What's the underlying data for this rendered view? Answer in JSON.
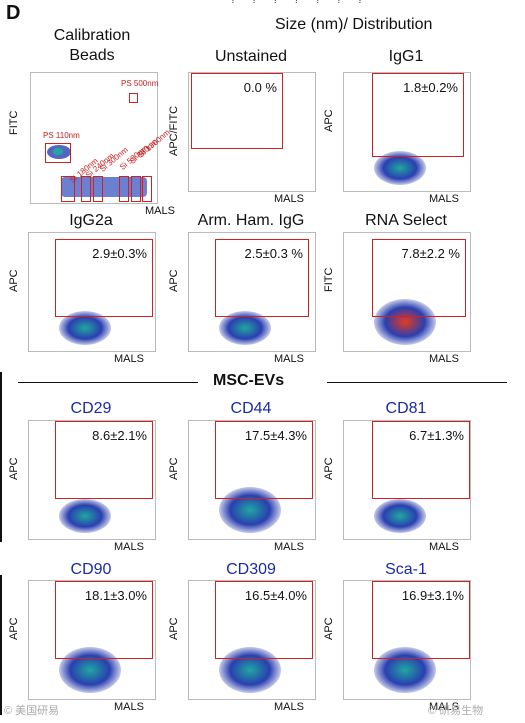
{
  "figure": {
    "panel_letter": "D",
    "top_clipped_text": "? ? ? ? ? ? ?",
    "size_header": "Size (nm)/ Distribution",
    "section_title": "MSC-EVs",
    "watermark_left": "© 美国研易",
    "watermark_right": "© 研易生物"
  },
  "calibration": {
    "title_line1": "Calibration",
    "title_line2": "Beads",
    "ylabel": "FITC",
    "xlabel": "MALS",
    "labels": [
      "PS 500nm",
      "PS 110nm",
      "Si 180nm",
      "Si 240nm",
      "Si 300nm",
      "Si 590nm",
      "Si 880nm",
      "Si 1300nm"
    ]
  },
  "plots": [
    {
      "title": "Unstained",
      "ylabel": "APC/FITC",
      "xlabel": "MALS",
      "pct": "0.0 %",
      "title_color": "black"
    },
    {
      "title": "IgG1",
      "ylabel": "APC",
      "xlabel": "MALS",
      "pct": "1.8±0.2%",
      "title_color": "black"
    },
    {
      "title": "IgG2a",
      "ylabel": "APC",
      "xlabel": "MALS",
      "pct": "2.9±0.3%",
      "title_color": "black"
    },
    {
      "title": "Arm. Ham. IgG",
      "ylabel": "APC",
      "xlabel": "MALS",
      "pct": "2.5±0.3 %",
      "title_color": "black"
    },
    {
      "title": "RNA Select",
      "ylabel": "FITC",
      "xlabel": "MALS",
      "pct": "7.8±2.2 %",
      "title_color": "black"
    },
    {
      "title": "CD29",
      "ylabel": "APC",
      "xlabel": "MALS",
      "pct": "8.6±2.1%",
      "title_color": "blue"
    },
    {
      "title": "CD44",
      "ylabel": "APC",
      "xlabel": "MALS",
      "pct": "17.5±4.3%",
      "title_color": "blue"
    },
    {
      "title": "CD81",
      "ylabel": "APC",
      "xlabel": "MALS",
      "pct": "6.7±1.3%",
      "title_color": "blue"
    },
    {
      "title": "CD90",
      "ylabel": "APC",
      "xlabel": "MALS",
      "pct": "18.1±3.0%",
      "title_color": "blue"
    },
    {
      "title": "CD309",
      "ylabel": "APC",
      "xlabel": "MALS",
      "pct": "16.5±4.0%",
      "title_color": "blue"
    },
    {
      "title": "Sca-1",
      "ylabel": "APC",
      "xlabel": "MALS",
      "pct": "16.9±3.1%",
      "title_color": "blue"
    }
  ],
  "colors": {
    "gate": "#d21f1f",
    "marker_title": "#1a2aa8",
    "cloud_blue": "#2a3fb0",
    "cloud_dense": "#1fa8a0",
    "rna_hot": "#e83a1f"
  }
}
